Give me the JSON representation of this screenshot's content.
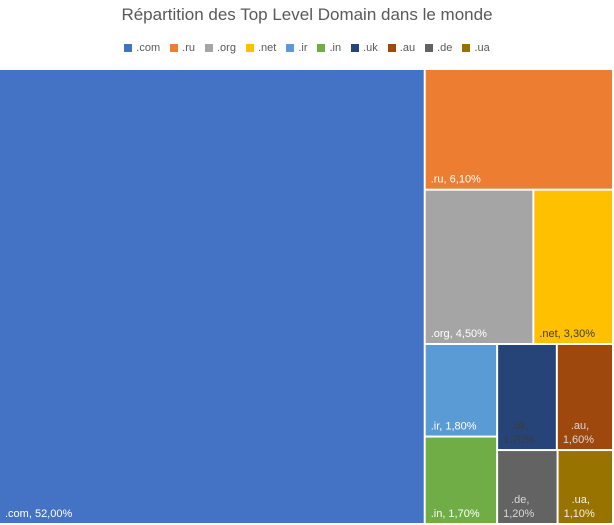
{
  "chart_data": {
    "type": "treemap",
    "title": "Répartition des Top Level Domain dans le monde",
    "legend_position": "top",
    "items": [
      {
        "name": ".com",
        "value": 52.0,
        "label": ".com, 52,00%",
        "color": "#4472C4",
        "text_color": "#ffffff"
      },
      {
        "name": ".ru",
        "value": 6.1,
        "label": ".ru, 6,10%",
        "color": "#ED7D31",
        "text_color": "#ffffff"
      },
      {
        "name": ".org",
        "value": 4.5,
        "label": ".org, 4,50%",
        "color": "#A5A5A5",
        "text_color": "#ffffff"
      },
      {
        "name": ".net",
        "value": 3.3,
        "label": ".net, 3,30%",
        "color": "#FFC000",
        "text_color": "#404040"
      },
      {
        "name": ".ir",
        "value": 1.8,
        "label": ".ir, 1,80%",
        "color": "#5B9BD5",
        "text_color": "#ffffff"
      },
      {
        "name": ".uk",
        "value": 1.7,
        "label": ".uk, 1,70%",
        "color": "#264478",
        "text_color": "#3b3b3b"
      },
      {
        "name": ".au",
        "value": 1.6,
        "label": ".au, 1,60%",
        "color": "#9E480E",
        "text_color": "#d8d8d8"
      },
      {
        "name": ".in",
        "value": 1.7,
        "label": ".in, 1,70%",
        "color": "#70AD47",
        "text_color": "#ffffff"
      },
      {
        "name": ".de",
        "value": 1.2,
        "label": ".de, 1,20%",
        "color": "#636363",
        "text_color": "#d8d8d8"
      },
      {
        "name": ".ua",
        "value": 1.1,
        "label": ".ua, 1,10%",
        "color": "#997300",
        "text_color": "#f0f0f0"
      }
    ],
    "legend_order": [
      ".com",
      ".ru",
      ".org",
      ".net",
      ".ir",
      ".in",
      ".uk",
      ".au",
      ".de",
      ".ua"
    ]
  }
}
